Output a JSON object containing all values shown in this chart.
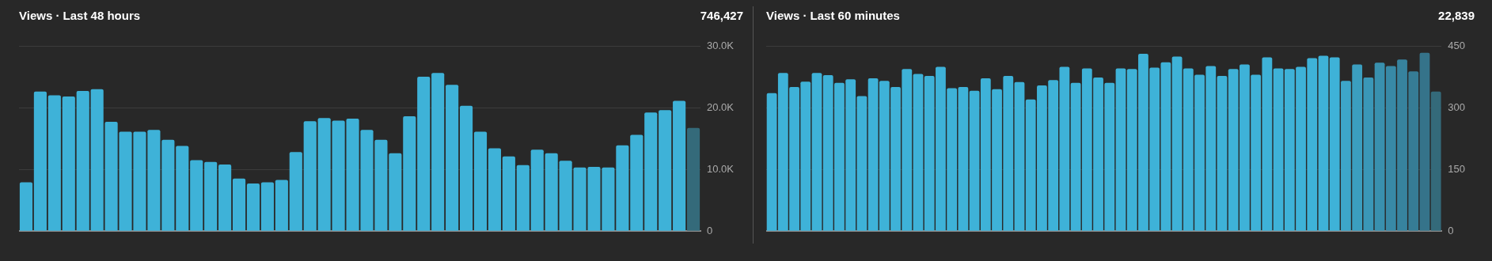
{
  "chart_data": [
    {
      "type": "bar",
      "title": "Views · Last 48 hours",
      "annotations": [
        "746,427"
      ],
      "categories": [
        null,
        null,
        null,
        null,
        null,
        null,
        null,
        null,
        null,
        null,
        null,
        null,
        null,
        null,
        null,
        null,
        null,
        null,
        null,
        null,
        null,
        null,
        null,
        null,
        null,
        null,
        null,
        null,
        null,
        null,
        null,
        null,
        null,
        null,
        null,
        null,
        null,
        null,
        null,
        null,
        null,
        null,
        null,
        null,
        null,
        null,
        null,
        null
      ],
      "values": [
        7900,
        22600,
        22000,
        21800,
        22700,
        23000,
        17700,
        16100,
        16100,
        16400,
        14800,
        13800,
        11500,
        11200,
        10800,
        8500,
        7700,
        7900,
        8300,
        12800,
        17800,
        18300,
        17900,
        18200,
        16400,
        14800,
        12600,
        18600,
        25000,
        25600,
        23700,
        20300,
        16100,
        13400,
        12100,
        10700,
        13200,
        12600,
        11400,
        10300,
        10400,
        10300,
        13900,
        15600,
        19200,
        19600,
        21100,
        16700
      ],
      "colors": [
        "#3eb2d8",
        "#3eb2d8",
        "#3eb2d8",
        "#3eb2d8",
        "#3eb2d8",
        "#3eb2d8",
        "#3eb2d8",
        "#3eb2d8",
        "#3eb2d8",
        "#3eb2d8",
        "#3eb2d8",
        "#3eb2d8",
        "#3eb2d8",
        "#3eb2d8",
        "#3eb2d8",
        "#3eb2d8",
        "#3eb2d8",
        "#3eb2d8",
        "#3eb2d8",
        "#3eb2d8",
        "#3eb2d8",
        "#3eb2d8",
        "#3eb2d8",
        "#3eb2d8",
        "#3eb2d8",
        "#3eb2d8",
        "#3eb2d8",
        "#3eb2d8",
        "#3eb2d8",
        "#3eb2d8",
        "#3eb2d8",
        "#3eb2d8",
        "#3eb2d8",
        "#3eb2d8",
        "#3eb2d8",
        "#3eb2d8",
        "#3eb2d8",
        "#3eb2d8",
        "#3eb2d8",
        "#3eb2d8",
        "#3eb2d8",
        "#3eb2d8",
        "#3eb2d8",
        "#3eb2d8",
        "#3eb2d8",
        "#3eb2d8",
        "#3eb2d8",
        "#346a7a"
      ],
      "ylim": [
        0,
        30000
      ],
      "yticks": [
        {
          "value": 0,
          "label": "0"
        },
        {
          "value": 10000,
          "label": "10.0K"
        },
        {
          "value": 20000,
          "label": "20.0K"
        },
        {
          "value": 30000,
          "label": "30.0K"
        }
      ],
      "grid": "y",
      "tick_labels": "y"
    },
    {
      "type": "bar",
      "title": "Views · Last 60 minutes",
      "annotations": [
        "22,839"
      ],
      "categories": [
        null,
        null,
        null,
        null,
        null,
        null,
        null,
        null,
        null,
        null,
        null,
        null,
        null,
        null,
        null,
        null,
        null,
        null,
        null,
        null,
        null,
        null,
        null,
        null,
        null,
        null,
        null,
        null,
        null,
        null,
        null,
        null,
        null,
        null,
        null,
        null,
        null,
        null,
        null,
        null,
        null,
        null,
        null,
        null,
        null,
        null,
        null,
        null,
        null,
        null,
        null,
        null,
        null,
        null,
        null,
        null,
        null,
        null,
        null,
        null
      ],
      "values": [
        335,
        384,
        350,
        363,
        384,
        379,
        360,
        369,
        328,
        371,
        365,
        350,
        394,
        382,
        377,
        399,
        347,
        350,
        341,
        371,
        345,
        377,
        362,
        320,
        354,
        367,
        399,
        360,
        395,
        373,
        360,
        395,
        394,
        431,
        397,
        410,
        424,
        395,
        380,
        401,
        377,
        394,
        405,
        380,
        422,
        395,
        394,
        399,
        420,
        426,
        422,
        365,
        405,
        373,
        409,
        401,
        417,
        388,
        433,
        339
      ],
      "colors": [
        "#3eb2d8",
        "#3eb2d8",
        "#3eb2d8",
        "#3eb2d8",
        "#3eb2d8",
        "#3eb2d8",
        "#3eb2d8",
        "#3eb2d8",
        "#3eb2d8",
        "#3eb2d8",
        "#3eb2d8",
        "#3eb2d8",
        "#3eb2d8",
        "#3eb2d8",
        "#3eb2d8",
        "#3eb2d8",
        "#3eb2d8",
        "#3eb2d8",
        "#3eb2d8",
        "#3eb2d8",
        "#3eb2d8",
        "#3eb2d8",
        "#3eb2d8",
        "#3eb2d8",
        "#3eb2d8",
        "#3eb2d8",
        "#3eb2d8",
        "#3eb2d8",
        "#3eb2d8",
        "#3eb2d8",
        "#3eb2d8",
        "#3eb2d8",
        "#3eb2d8",
        "#3eb2d8",
        "#3eb2d8",
        "#3eb2d8",
        "#3eb2d8",
        "#3eb2d8",
        "#3eb2d8",
        "#3eb2d8",
        "#3eb2d8",
        "#3eb2d8",
        "#3eb2d8",
        "#3eb2d8",
        "#3eb2d8",
        "#3eb2d8",
        "#3eb2d8",
        "#3eb2d8",
        "#3eb2d8",
        "#3eb2d8",
        "#3eb2d8",
        "#3da6c9",
        "#3b9ebf",
        "#3a97b7",
        "#3990ae",
        "#3889a6",
        "#37839e",
        "#367c95",
        "#35738a",
        "#346a7a"
      ],
      "ylim": [
        0,
        450
      ],
      "yticks": [
        {
          "value": 0,
          "label": "0"
        },
        {
          "value": 150,
          "label": "150"
        },
        {
          "value": 300,
          "label": "300"
        },
        {
          "value": 450,
          "label": "450"
        }
      ],
      "grid": "y",
      "tick_labels": "y"
    }
  ]
}
